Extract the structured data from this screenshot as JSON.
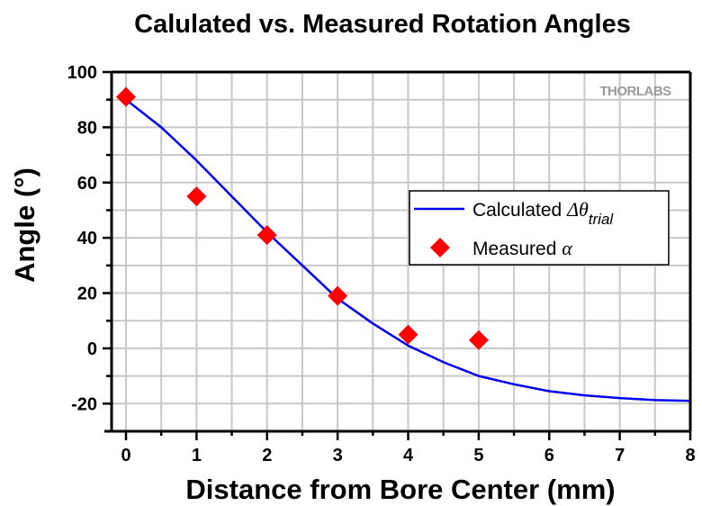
{
  "chart_data": {
    "type": "line",
    "title": "Calulated vs. Measured Rotation Angles",
    "xlabel": "Distance from Bore Center (mm)",
    "ylabel": "Angle (°)",
    "xlim": [
      -0.2,
      8
    ],
    "ylim": [
      -30,
      100
    ],
    "x_ticks": [
      0,
      1,
      2,
      3,
      4,
      5,
      6,
      7,
      8
    ],
    "x_tick_labels": [
      "0",
      "1",
      "2",
      "3",
      "4",
      "5",
      "6",
      "7",
      "8"
    ],
    "y_ticks": [
      -20,
      0,
      20,
      40,
      60,
      80,
      100
    ],
    "y_tick_labels": [
      "-20",
      "0",
      "20",
      "40",
      "60",
      "80",
      "100"
    ],
    "grid": true,
    "legend_position": "center-right",
    "watermark": "THORLABS",
    "series": [
      {
        "name": "Calculated Δθ trial",
        "legend_main": "Calculated ",
        "legend_symbol": "Δθ",
        "legend_subscript": "trial",
        "kind": "line",
        "color": "#0000ee",
        "x": [
          0,
          0.5,
          1,
          1.5,
          2,
          2.5,
          3,
          3.5,
          4,
          4.5,
          5,
          5.5,
          6,
          6.5,
          7,
          7.5,
          8
        ],
        "y": [
          90,
          80,
          68,
          55,
          42,
          30,
          18,
          9,
          1,
          -5,
          -10,
          -13,
          -15.5,
          -17,
          -18,
          -18.7,
          -19
        ]
      },
      {
        "name": "Measured α",
        "legend_main": "Measured ",
        "legend_symbol": "α",
        "kind": "scatter",
        "marker": "diamond",
        "color": "#ff0000",
        "x": [
          0,
          1,
          2,
          3,
          4,
          5
        ],
        "y": [
          91,
          55,
          41,
          19,
          5,
          3
        ]
      }
    ]
  }
}
